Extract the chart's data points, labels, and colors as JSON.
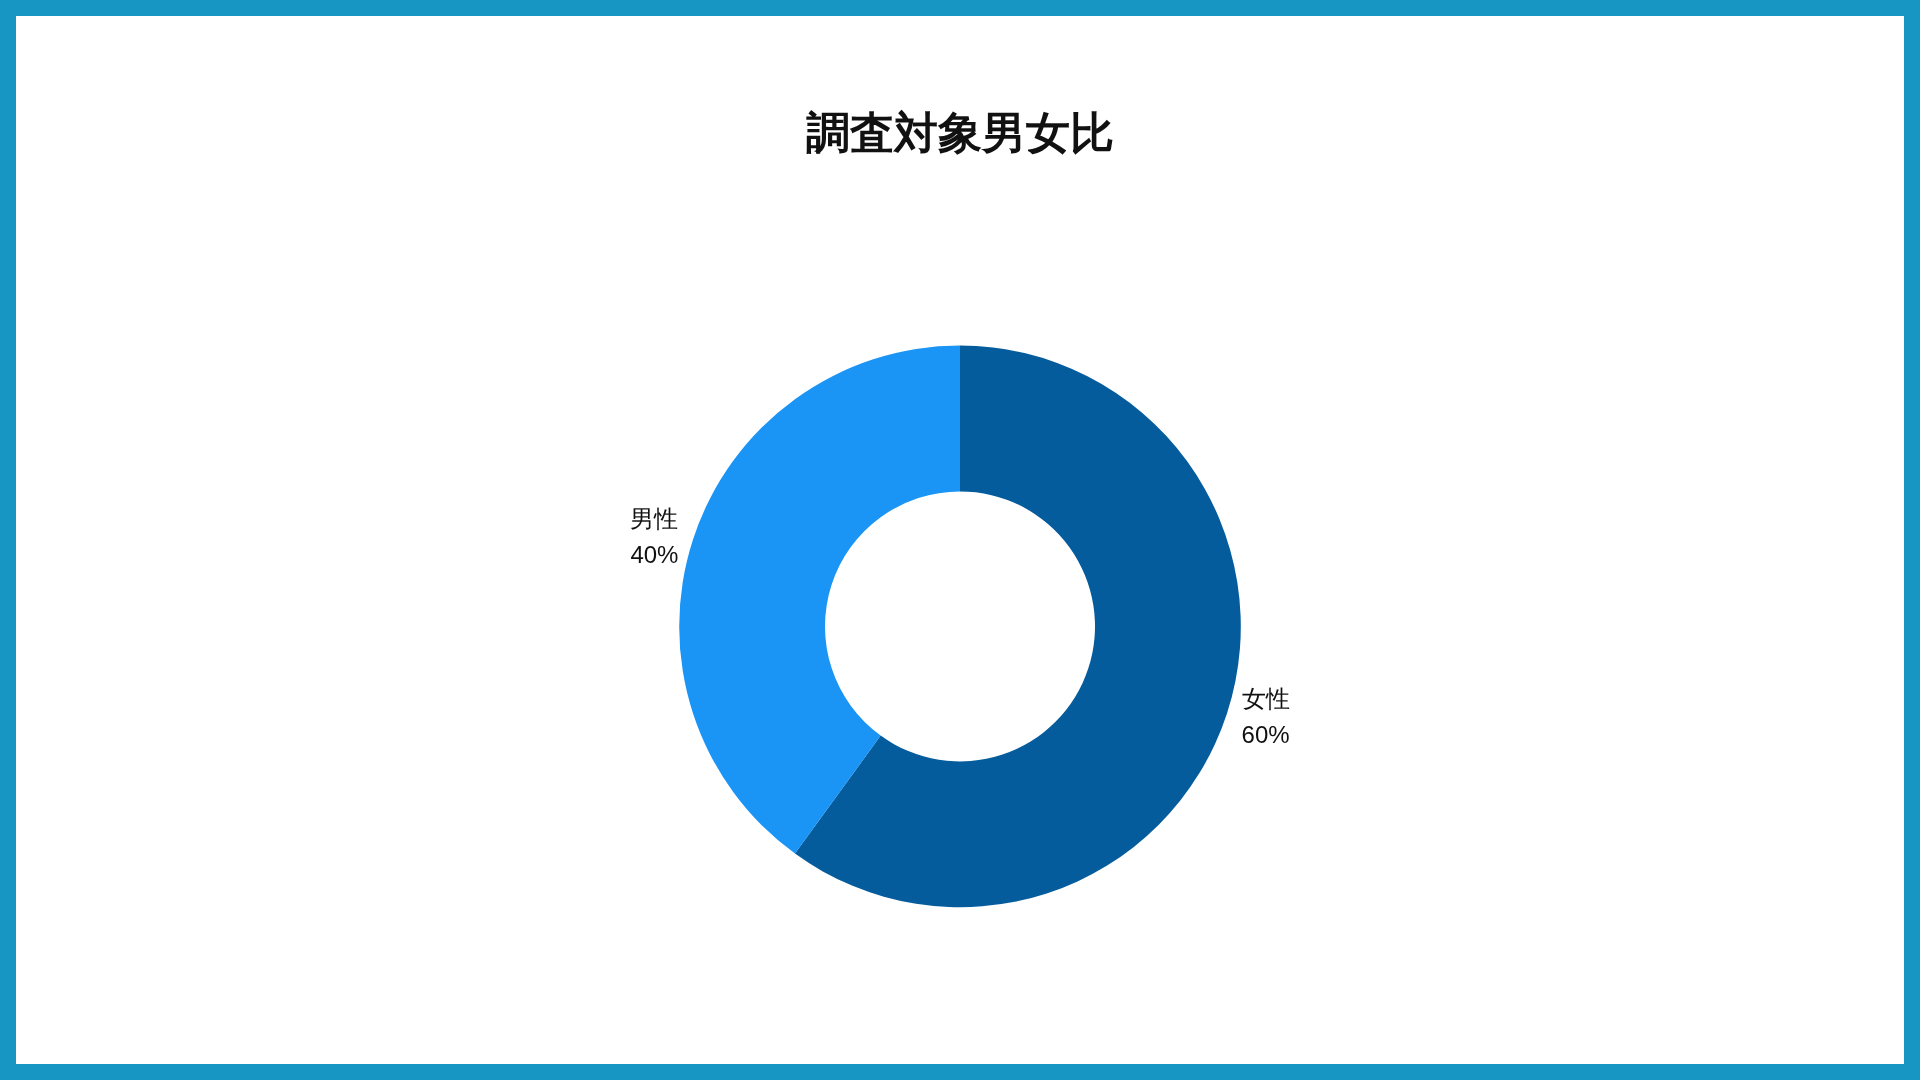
{
  "chart_data": {
    "type": "donut",
    "title": "調査対象男女比",
    "categories": [
      "女性",
      "男性"
    ],
    "values": [
      60,
      40
    ],
    "value_labels": [
      "60%",
      "40%"
    ],
    "colors": [
      "#055c9d",
      "#1a94f5"
    ],
    "legend": false
  }
}
